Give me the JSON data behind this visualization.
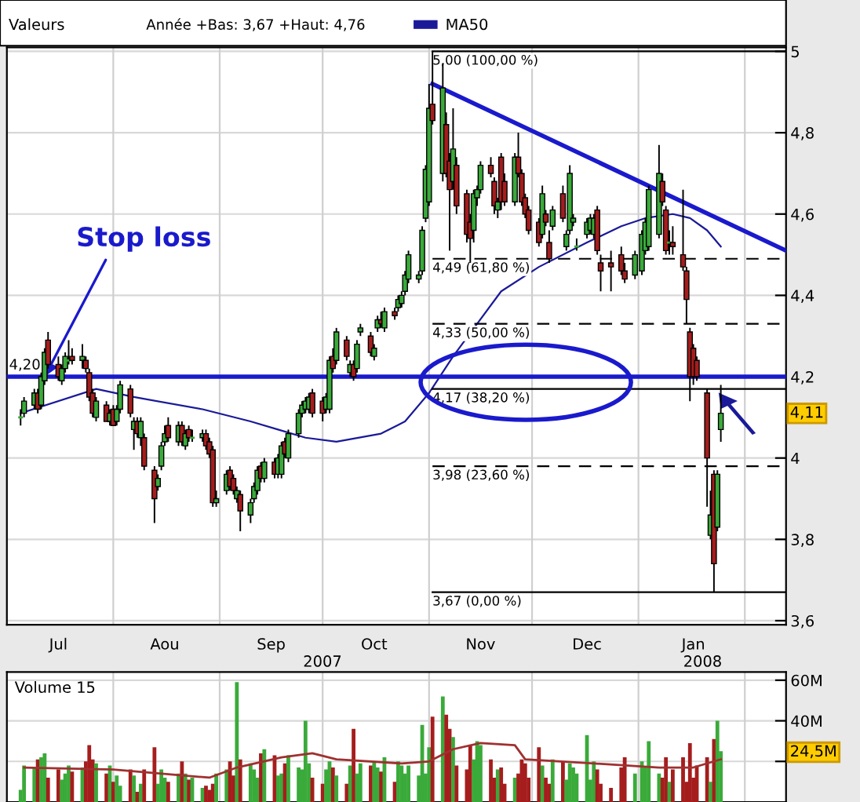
{
  "chart_data": [
    {
      "type": "candlestick",
      "title": "Valeurs",
      "subtitle": "Année +Bas: 3,67 +Haut: 4,76",
      "x": [
        "2007-07-05",
        "2007-07-06",
        "2007-07-09",
        "2007-07-10",
        "2007-07-11",
        "2007-07-12",
        "2007-07-13",
        "2007-07-16",
        "2007-07-17",
        "2007-07-18",
        "2007-07-19",
        "2007-07-20",
        "2007-07-23",
        "2007-07-24",
        "2007-07-25",
        "2007-07-26",
        "2007-07-27",
        "2007-07-30",
        "2007-07-31",
        "2007-08-01",
        "2007-08-02",
        "2007-08-03",
        "2007-08-06",
        "2007-08-07",
        "2007-08-08",
        "2007-08-09",
        "2007-08-10",
        "2007-08-13",
        "2007-08-14",
        "2007-08-15",
        "2007-08-16",
        "2007-08-17",
        "2007-08-20",
        "2007-08-21",
        "2007-08-22",
        "2007-08-23",
        "2007-08-24",
        "2007-08-27",
        "2007-08-28",
        "2007-08-29",
        "2007-08-30",
        "2007-08-31",
        "2007-09-03",
        "2007-09-04",
        "2007-09-05",
        "2007-09-06",
        "2007-09-07",
        "2007-09-10",
        "2007-09-11",
        "2007-09-12",
        "2007-09-13",
        "2007-09-14",
        "2007-09-17",
        "2007-09-18",
        "2007-09-19",
        "2007-09-20",
        "2007-09-21",
        "2007-09-24",
        "2007-09-25",
        "2007-09-26",
        "2007-09-27",
        "2007-09-28",
        "2007-10-01",
        "2007-10-02",
        "2007-10-03",
        "2007-10-04",
        "2007-10-05",
        "2007-10-08",
        "2007-10-09",
        "2007-10-10",
        "2007-10-11",
        "2007-10-12",
        "2007-10-15",
        "2007-10-16",
        "2007-10-17",
        "2007-10-18",
        "2007-10-19",
        "2007-10-22",
        "2007-10-23",
        "2007-10-24",
        "2007-10-25",
        "2007-10-26",
        "2007-10-29",
        "2007-10-30",
        "2007-10-31",
        "2007-11-01",
        "2007-11-02",
        "2007-11-05",
        "2007-11-06",
        "2007-11-07",
        "2007-11-08",
        "2007-11-09",
        "2007-11-12",
        "2007-11-13",
        "2007-11-14",
        "2007-11-15",
        "2007-11-16",
        "2007-11-19",
        "2007-11-20",
        "2007-11-21",
        "2007-11-22",
        "2007-11-23",
        "2007-11-26",
        "2007-11-27",
        "2007-11-28",
        "2007-11-29",
        "2007-11-30",
        "2007-12-03",
        "2007-12-04",
        "2007-12-05",
        "2007-12-06",
        "2007-12-07",
        "2007-12-10",
        "2007-12-11",
        "2007-12-12",
        "2007-12-13",
        "2007-12-14",
        "2007-12-17",
        "2007-12-18",
        "2007-12-19",
        "2007-12-20",
        "2007-12-21",
        "2007-12-24",
        "2007-12-27",
        "2007-12-28",
        "2007-12-31",
        "2008-01-02",
        "2008-01-03",
        "2008-01-04",
        "2008-01-07",
        "2008-01-08",
        "2008-01-09",
        "2008-01-10",
        "2008-01-11",
        "2008-01-14",
        "2008-01-15",
        "2008-01-16",
        "2008-01-17",
        "2008-01-18",
        "2008-01-21",
        "2008-01-22",
        "2008-01-23",
        "2008-01-24",
        "2008-01-25"
      ],
      "ohlc": [
        [
          4.1,
          4.12,
          4.08,
          4.1
        ],
        [
          4.11,
          4.15,
          4.1,
          4.14
        ],
        [
          4.13,
          4.17,
          4.12,
          4.16
        ],
        [
          4.16,
          4.17,
          4.11,
          4.12
        ],
        [
          4.13,
          4.21,
          4.12,
          4.2
        ],
        [
          4.19,
          4.27,
          4.18,
          4.26
        ],
        [
          4.29,
          4.31,
          4.22,
          4.23
        ],
        [
          4.23,
          4.25,
          4.19,
          4.2
        ],
        [
          4.19,
          4.23,
          4.18,
          4.22
        ],
        [
          4.22,
          4.26,
          4.21,
          4.25
        ],
        [
          4.24,
          4.29,
          4.23,
          4.24
        ],
        [
          4.25,
          4.27,
          4.23,
          4.24
        ],
        [
          4.24,
          4.28,
          4.22,
          4.25
        ],
        [
          4.24,
          4.25,
          4.21,
          4.22
        ],
        [
          4.21,
          4.22,
          4.14,
          4.15
        ],
        [
          4.16,
          4.17,
          4.1,
          4.11
        ],
        [
          4.1,
          4.15,
          4.09,
          4.14
        ],
        [
          4.13,
          4.14,
          4.09,
          4.09
        ],
        [
          4.09,
          4.12,
          4.08,
          4.11
        ],
        [
          4.12,
          4.13,
          4.08,
          4.08
        ],
        [
          4.09,
          4.13,
          4.08,
          4.12
        ],
        [
          4.12,
          4.19,
          4.11,
          4.18
        ],
        [
          4.17,
          4.18,
          4.1,
          4.11
        ],
        [
          4.07,
          4.1,
          4.02,
          4.09
        ],
        [
          4.09,
          4.1,
          4.05,
          4.06
        ],
        [
          4.05,
          4.1,
          4.03,
          4.09
        ],
        [
          4.05,
          4.06,
          3.97,
          3.98
        ],
        [
          3.97,
          3.98,
          3.84,
          3.9
        ],
        [
          3.93,
          3.96,
          3.92,
          3.95
        ],
        [
          3.98,
          4.04,
          3.97,
          4.03
        ],
        [
          4.04,
          4.08,
          4.03,
          4.06
        ],
        [
          4.08,
          4.1,
          4.04,
          4.05
        ],
        [
          4.04,
          4.09,
          4.03,
          4.08
        ],
        [
          4.08,
          4.09,
          4.03,
          4.04
        ],
        [
          4.03,
          4.07,
          4.02,
          4.06
        ],
        [
          4.07,
          4.08,
          4.04,
          4.05
        ],
        [
          4.05,
          4.07,
          4.04,
          4.05
        ],
        [
          4.05,
          4.07,
          4.04,
          4.06
        ],
        [
          4.06,
          4.07,
          4.02,
          4.03
        ],
        [
          4.04,
          4.05,
          4.0,
          4.01
        ],
        [
          4.02,
          4.03,
          3.88,
          3.89
        ],
        [
          3.89,
          3.92,
          3.88,
          3.9
        ],
        [
          3.92,
          3.97,
          3.91,
          3.96
        ],
        [
          3.97,
          3.98,
          3.92,
          3.93
        ],
        [
          3.95,
          3.96,
          3.91,
          3.92
        ],
        [
          3.9,
          3.93,
          3.89,
          3.92
        ],
        [
          3.91,
          3.92,
          3.82,
          3.87
        ],
        [
          3.86,
          3.9,
          3.84,
          3.89
        ],
        [
          3.9,
          3.94,
          3.89,
          3.93
        ],
        [
          3.92,
          3.98,
          3.91,
          3.97
        ],
        [
          3.98,
          3.99,
          3.94,
          3.95
        ],
        [
          3.95,
          4.0,
          3.94,
          3.99
        ],
        [
          3.99,
          4.0,
          3.95,
          3.96
        ],
        [
          3.96,
          4.01,
          3.95,
          4.0
        ],
        [
          3.96,
          4.04,
          3.95,
          4.03
        ],
        [
          4.04,
          4.05,
          4.0,
          4.01
        ],
        [
          4.0,
          4.07,
          3.99,
          4.06
        ],
        [
          4.06,
          4.12,
          4.05,
          4.11
        ],
        [
          4.11,
          4.14,
          4.1,
          4.13
        ],
        [
          4.12,
          4.15,
          4.11,
          4.14
        ],
        [
          4.12,
          4.16,
          4.11,
          4.15
        ],
        [
          4.16,
          4.17,
          4.1,
          4.11
        ],
        [
          4.14,
          4.15,
          4.09,
          4.11
        ],
        [
          4.12,
          4.16,
          4.11,
          4.15
        ],
        [
          4.12,
          4.25,
          4.11,
          4.24
        ],
        [
          4.25,
          4.27,
          4.21,
          4.22
        ],
        [
          4.24,
          4.32,
          4.23,
          4.31
        ],
        [
          4.29,
          4.3,
          4.24,
          4.25
        ],
        [
          4.21,
          4.24,
          4.2,
          4.23
        ],
        [
          4.23,
          4.24,
          4.19,
          4.2
        ],
        [
          4.22,
          4.29,
          4.21,
          4.28
        ],
        [
          4.31,
          4.33,
          4.3,
          4.32
        ],
        [
          4.3,
          4.31,
          4.25,
          4.26
        ],
        [
          4.25,
          4.28,
          4.24,
          4.27
        ],
        [
          4.32,
          4.35,
          4.31,
          4.34
        ],
        [
          4.34,
          4.36,
          4.32,
          4.33
        ],
        [
          4.32,
          4.37,
          4.31,
          4.36
        ],
        [
          4.36,
          4.37,
          4.34,
          4.35
        ],
        [
          4.37,
          4.4,
          4.36,
          4.39
        ],
        [
          4.38,
          4.41,
          4.37,
          4.4
        ],
        [
          4.41,
          4.46,
          4.4,
          4.45
        ],
        [
          4.44,
          4.51,
          4.43,
          4.5
        ],
        [
          4.44,
          4.46,
          4.43,
          4.45
        ],
        [
          4.46,
          4.57,
          4.45,
          4.56
        ],
        [
          4.59,
          4.72,
          4.58,
          4.71
        ],
        [
          4.63,
          4.92,
          4.62,
          4.86
        ],
        [
          4.87,
          5.0,
          4.82,
          4.83
        ],
        [
          4.7,
          4.97,
          4.68,
          4.91
        ],
        [
          4.82,
          4.85,
          4.69,
          4.7
        ],
        [
          4.73,
          4.75,
          4.51,
          4.66
        ],
        [
          4.68,
          4.86,
          4.66,
          4.76
        ],
        [
          4.72,
          4.74,
          4.6,
          4.62
        ],
        [
          4.65,
          4.66,
          4.53,
          4.55
        ],
        [
          4.58,
          4.6,
          4.48,
          4.54
        ],
        [
          4.56,
          4.66,
          4.53,
          4.65
        ],
        [
          4.64,
          4.67,
          4.62,
          4.66
        ],
        [
          4.66,
          4.73,
          4.65,
          4.72
        ],
        [
          4.72,
          4.74,
          4.69,
          4.7
        ],
        [
          4.68,
          4.69,
          4.6,
          4.62
        ],
        [
          4.61,
          4.64,
          4.59,
          4.63
        ],
        [
          4.74,
          4.75,
          4.61,
          4.63
        ],
        [
          4.68,
          4.7,
          4.62,
          4.63
        ],
        [
          4.63,
          4.75,
          4.62,
          4.74
        ],
        [
          4.74,
          4.8,
          4.69,
          4.7
        ],
        [
          4.7,
          4.71,
          4.62,
          4.63
        ],
        [
          4.64,
          4.65,
          4.59,
          4.6
        ],
        [
          4.61,
          4.62,
          4.55,
          4.56
        ],
        [
          4.58,
          4.59,
          4.52,
          4.53
        ],
        [
          4.55,
          4.67,
          4.54,
          4.65
        ],
        [
          4.6,
          4.61,
          4.57,
          4.58
        ],
        [
          4.53,
          4.56,
          4.48,
          4.49
        ],
        [
          4.57,
          4.62,
          4.56,
          4.61
        ],
        [
          4.65,
          4.67,
          4.58,
          4.59
        ],
        [
          4.52,
          4.56,
          4.51,
          4.55
        ],
        [
          4.56,
          4.72,
          4.55,
          4.7
        ],
        [
          4.58,
          4.6,
          4.57,
          4.59
        ],
        [
          4.52,
          4.54,
          4.51,
          4.52
        ],
        [
          4.55,
          4.59,
          4.54,
          4.58
        ],
        [
          4.56,
          4.6,
          4.55,
          4.59
        ],
        [
          4.55,
          4.6,
          4.54,
          4.59
        ],
        [
          4.61,
          4.62,
          4.5,
          4.51
        ],
        [
          4.48,
          4.5,
          4.41,
          4.46
        ],
        [
          4.48,
          4.51,
          4.41,
          4.47
        ],
        [
          4.5,
          4.52,
          4.45,
          4.46
        ],
        [
          4.46,
          4.48,
          4.43,
          4.44
        ],
        [
          4.45,
          4.51,
          4.44,
          4.5
        ],
        [
          4.46,
          4.56,
          4.45,
          4.55
        ],
        [
          4.51,
          4.59,
          4.5,
          4.58
        ],
        [
          4.52,
          4.67,
          4.51,
          4.66
        ],
        [
          4.55,
          4.77,
          4.54,
          4.7
        ],
        [
          4.68,
          4.7,
          4.62,
          4.63
        ],
        [
          4.61,
          4.62,
          4.5,
          4.51
        ],
        [
          4.53,
          4.56,
          4.5,
          4.53
        ],
        [
          4.53,
          4.57,
          4.5,
          4.52
        ],
        [
          4.5,
          4.66,
          4.46,
          4.47
        ],
        [
          4.46,
          4.47,
          4.33,
          4.39
        ],
        [
          4.31,
          4.32,
          4.14,
          4.2
        ],
        [
          4.27,
          4.28,
          4.18,
          4.2
        ],
        [
          4.24,
          4.25,
          4.19,
          4.2
        ],
        [
          4.16,
          4.17,
          3.88,
          4.0
        ],
        [
          3.81,
          3.92,
          3.8,
          3.86
        ],
        [
          3.96,
          3.97,
          3.67,
          3.74
        ],
        [
          3.83,
          3.97,
          3.82,
          3.96
        ],
        [
          4.07,
          4.18,
          4.04,
          4.11
        ]
      ],
      "colors": [
        "#3aaa3a",
        "#3aaa3a",
        "#3aaa3a",
        "#a51d1d",
        "#3aaa3a",
        "#3aaa3a",
        "#a51d1d",
        "#a51d1d",
        "#3aaa3a",
        "#3aaa3a",
        "#3aaa3a",
        "#a51d1d",
        "#3aaa3a",
        "#a51d1d",
        "#a51d1d",
        "#a51d1d",
        "#3aaa3a",
        "#a51d1d",
        "#3aaa3a",
        "#a51d1d",
        "#3aaa3a",
        "#3aaa3a",
        "#a51d1d",
        "#3aaa3a",
        "#a51d1d",
        "#3aaa3a",
        "#a51d1d",
        "#a51d1d",
        "#3aaa3a",
        "#3aaa3a",
        "#3aaa3a",
        "#a51d1d",
        "#3aaa3a",
        "#a51d1d",
        "#3aaa3a",
        "#a51d1d",
        "#3aaa3a",
        "#3aaa3a",
        "#a51d1d",
        "#a51d1d",
        "#a51d1d",
        "#3aaa3a",
        "#3aaa3a",
        "#a51d1d",
        "#a51d1d",
        "#3aaa3a",
        "#a51d1d",
        "#3aaa3a",
        "#3aaa3a",
        "#3aaa3a",
        "#a51d1d",
        "#3aaa3a",
        "#a51d1d",
        "#3aaa3a",
        "#3aaa3a",
        "#a51d1d",
        "#3aaa3a",
        "#3aaa3a",
        "#3aaa3a",
        "#3aaa3a",
        "#3aaa3a",
        "#a51d1d",
        "#a51d1d",
        "#3aaa3a",
        "#3aaa3a",
        "#a51d1d",
        "#3aaa3a",
        "#a51d1d",
        "#3aaa3a",
        "#a51d1d",
        "#3aaa3a",
        "#3aaa3a",
        "#a51d1d",
        "#3aaa3a",
        "#3aaa3a",
        "#a51d1d",
        "#3aaa3a",
        "#a51d1d",
        "#3aaa3a",
        "#3aaa3a",
        "#3aaa3a",
        "#3aaa3a",
        "#3aaa3a",
        "#3aaa3a",
        "#3aaa3a",
        "#3aaa3a",
        "#a51d1d",
        "#3aaa3a",
        "#a51d1d",
        "#a51d1d",
        "#3aaa3a",
        "#a51d1d",
        "#a51d1d",
        "#a51d1d",
        "#3aaa3a",
        "#3aaa3a",
        "#3aaa3a",
        "#a51d1d",
        "#a51d1d",
        "#3aaa3a",
        "#a51d1d",
        "#a51d1d",
        "#3aaa3a",
        "#a51d1d",
        "#a51d1d",
        "#a51d1d",
        "#a51d1d",
        "#a51d1d",
        "#3aaa3a",
        "#a51d1d",
        "#a51d1d",
        "#3aaa3a",
        "#a51d1d",
        "#3aaa3a",
        "#3aaa3a",
        "#3aaa3a",
        "#3aaa3a",
        "#3aaa3a",
        "#3aaa3a",
        "#3aaa3a",
        "#a51d1d",
        "#a51d1d",
        "#a51d1d",
        "#a51d1d",
        "#a51d1d",
        "#3aaa3a",
        "#3aaa3a",
        "#3aaa3a",
        "#3aaa3a",
        "#3aaa3a",
        "#a51d1d",
        "#a51d1d",
        "#3aaa3a",
        "#a51d1d",
        "#a51d1d",
        "#a51d1d",
        "#a51d1d",
        "#a51d1d",
        "#a51d1d",
        "#a51d1d",
        "#3aaa3a",
        "#a51d1d",
        "#3aaa3a",
        "#3aaa3a"
      ],
      "series": [
        {
          "type": "line",
          "name": "MA50",
          "color": "#1a1a99",
          "x": [
            "2007-07-05",
            "2007-07-27",
            "2007-08-07",
            "2007-08-27",
            "2007-09-10",
            "2007-09-18",
            "2007-09-26",
            "2007-10-05",
            "2007-10-18",
            "2007-10-25",
            "2007-11-01",
            "2007-11-08",
            "2007-11-15",
            "2007-11-22",
            "2007-12-03",
            "2007-12-17",
            "2007-12-27",
            "2008-01-03",
            "2008-01-11",
            "2008-01-16",
            "2008-01-21",
            "2008-01-25"
          ],
          "values": [
            4.11,
            4.17,
            4.15,
            4.12,
            4.09,
            4.07,
            4.05,
            4.04,
            4.06,
            4.09,
            4.16,
            4.25,
            4.33,
            4.41,
            4.47,
            4.53,
            4.57,
            4.59,
            4.6,
            4.59,
            4.56,
            4.52
          ]
        },
        {
          "type": "line",
          "color": "#1a1acc",
          "x": [
            "2007-11-02",
            "2008-02-13"
          ],
          "values": [
            4.92,
            4.51
          ]
        },
        {
          "type": "line",
          "color": "#000000",
          "line_style": "solid",
          "x": [
            "2007-11-02",
            "2008-02-13"
          ],
          "values": [
            5.0,
            5.0
          ]
        },
        {
          "type": "line",
          "color": "#000000",
          "line_style": "dashed",
          "x": [
            "2007-11-02",
            "2008-02-13"
          ],
          "values": [
            4.49,
            4.49
          ]
        },
        {
          "type": "line",
          "color": "#000000",
          "line_style": "dashed",
          "x": [
            "2007-11-02",
            "2008-02-13"
          ],
          "values": [
            4.33,
            4.33
          ]
        },
        {
          "type": "line",
          "color": "#000000",
          "line_style": "solid",
          "x": [
            "2007-11-02",
            "2008-02-13"
          ],
          "values": [
            4.17,
            4.17
          ]
        },
        {
          "type": "line",
          "color": "#000000",
          "line_style": "dashed",
          "x": [
            "2007-11-02",
            "2008-02-13"
          ],
          "values": [
            3.98,
            3.98
          ]
        },
        {
          "type": "line",
          "color": "#000000",
          "line_style": "solid",
          "x": [
            "2007-11-02",
            "2008-02-13"
          ],
          "values": [
            3.67,
            3.67
          ]
        }
      ],
      "ref_lines": [
        {
          "axis": "y",
          "value": 4.2,
          "label": "4,20",
          "color": "#1a1acc"
        }
      ],
      "annotations": [
        {
          "text": "5,00 (100,00 %)",
          "x": "2007-11-02",
          "y": 5.0
        },
        {
          "text": "4,49 (61,80 %)",
          "x": "2007-11-02",
          "y": 4.49
        },
        {
          "text": "4,33 (50,00 %)",
          "x": "2007-11-02",
          "y": 4.33
        },
        {
          "text": "4,17 (38,20 %)",
          "x": "2007-11-02",
          "y": 4.17
        },
        {
          "text": "3,98 (23,60 %)",
          "x": "2007-11-02",
          "y": 3.98
        },
        {
          "text": "3,67 (0,00 %)",
          "x": "2007-11-02",
          "y": 3.67
        },
        {
          "text": "Stop loss",
          "x": "2007-07-12",
          "y": 4.2
        },
        "4,11",
        "2007",
        "2008"
      ],
      "xlim": [
        "2007-07-01",
        "2008-02-13"
      ],
      "ylim": [
        3.59,
        5.01
      ],
      "xticks": [
        {
          "value": "2007-07-16",
          "label": "Jul"
        },
        {
          "value": "2007-08-01",
          "label": null
        },
        {
          "value": "2007-08-16",
          "label": "Aou"
        },
        {
          "value": "2007-09-01",
          "label": null
        },
        {
          "value": "2007-09-16",
          "label": "Sep"
        },
        {
          "value": "2007-10-01",
          "label": null
        },
        {
          "value": "2007-10-16",
          "label": "Oct"
        },
        {
          "value": "2007-11-01",
          "label": null
        },
        {
          "value": "2007-11-16",
          "label": "Nov"
        },
        {
          "value": "2007-12-01",
          "label": null
        },
        {
          "value": "2007-12-17",
          "label": "Dec"
        },
        {
          "value": "2008-01-01",
          "label": null
        },
        {
          "value": "2008-01-17",
          "label": "Jan"
        },
        {
          "value": "2008-02-01",
          "label": null
        }
      ],
      "yticks": [
        {
          "value": 5,
          "label": "5"
        },
        {
          "value": 4.8,
          "label": "4,8"
        },
        {
          "value": 4.6,
          "label": "4,6"
        },
        {
          "value": 4.4,
          "label": "4,4"
        },
        {
          "value": 4.2,
          "label": "4,2"
        },
        {
          "value": 4,
          "label": "4"
        },
        {
          "value": 3.8,
          "label": "3,8"
        },
        {
          "value": 3.6,
          "label": "3,6"
        }
      ],
      "grid": true,
      "legend": "top"
    },
    {
      "type": "bar",
      "title": "Volume 15",
      "tick_labels": "y",
      "x": [
        "2007-07-05",
        "2007-07-06",
        "2007-07-09",
        "2007-07-10",
        "2007-07-11",
        "2007-07-12",
        "2007-07-13",
        "2007-07-16",
        "2007-07-17",
        "2007-07-18",
        "2007-07-19",
        "2007-07-20",
        "2007-07-23",
        "2007-07-24",
        "2007-07-25",
        "2007-07-26",
        "2007-07-27",
        "2007-07-30",
        "2007-07-31",
        "2007-08-01",
        "2007-08-02",
        "2007-08-03",
        "2007-08-06",
        "2007-08-07",
        "2007-08-08",
        "2007-08-09",
        "2007-08-10",
        "2007-08-13",
        "2007-08-14",
        "2007-08-15",
        "2007-08-16",
        "2007-08-17",
        "2007-08-20",
        "2007-08-21",
        "2007-08-22",
        "2007-08-23",
        "2007-08-24",
        "2007-08-27",
        "2007-08-28",
        "2007-08-29",
        "2007-08-30",
        "2007-08-31",
        "2007-09-03",
        "2007-09-04",
        "2007-09-05",
        "2007-09-06",
        "2007-09-07",
        "2007-09-10",
        "2007-09-11",
        "2007-09-12",
        "2007-09-13",
        "2007-09-14",
        "2007-09-17",
        "2007-09-18",
        "2007-09-19",
        "2007-09-20",
        "2007-09-21",
        "2007-09-24",
        "2007-09-25",
        "2007-09-26",
        "2007-09-27",
        "2007-09-28",
        "2007-10-01",
        "2007-10-02",
        "2007-10-03",
        "2007-10-04",
        "2007-10-05",
        "2007-10-08",
        "2007-10-09",
        "2007-10-10",
        "2007-10-11",
        "2007-10-12",
        "2007-10-15",
        "2007-10-16",
        "2007-10-17",
        "2007-10-18",
        "2007-10-19",
        "2007-10-22",
        "2007-10-23",
        "2007-10-24",
        "2007-10-25",
        "2007-10-26",
        "2007-10-29",
        "2007-10-30",
        "2007-10-31",
        "2007-11-01",
        "2007-11-02",
        "2007-11-05",
        "2007-11-06",
        "2007-11-07",
        "2007-11-08",
        "2007-11-09",
        "2007-11-12",
        "2007-11-13",
        "2007-11-14",
        "2007-11-15",
        "2007-11-16",
        "2007-11-19",
        "2007-11-20",
        "2007-11-21",
        "2007-11-22",
        "2007-11-23",
        "2007-11-26",
        "2007-11-27",
        "2007-11-28",
        "2007-11-29",
        "2007-11-30",
        "2007-12-03",
        "2007-12-04",
        "2007-12-05",
        "2007-12-06",
        "2007-12-07",
        "2007-12-10",
        "2007-12-11",
        "2007-12-12",
        "2007-12-13",
        "2007-12-14",
        "2007-12-17",
        "2007-12-18",
        "2007-12-19",
        "2007-12-20",
        "2007-12-21",
        "2007-12-24",
        "2007-12-27",
        "2007-12-28",
        "2007-12-31",
        "2008-01-02",
        "2008-01-03",
        "2008-01-04",
        "2008-01-07",
        "2008-01-08",
        "2008-01-09",
        "2008-01-10",
        "2008-01-11",
        "2008-01-14",
        "2008-01-15",
        "2008-01-16",
        "2008-01-17",
        "2008-01-18",
        "2008-01-21",
        "2008-01-22",
        "2008-01-23",
        "2008-01-24",
        "2008-01-25"
      ],
      "series": [
        {
          "type": "bar",
          "values": [
            6,
            18,
            17,
            21,
            22,
            24,
            12,
            16,
            11,
            14,
            18,
            15,
            17,
            20,
            28,
            21,
            19,
            14,
            18,
            10,
            13,
            8,
            16,
            13,
            5,
            9,
            16,
            27,
            9,
            16,
            12,
            10,
            14,
            20,
            14,
            11,
            12,
            7,
            8,
            6,
            9,
            14,
            16,
            20,
            13,
            59,
            21,
            19,
            16,
            12,
            24,
            26,
            23,
            13,
            14,
            19,
            23,
            17,
            16,
            40,
            19,
            12,
            9,
            16,
            20,
            17,
            13,
            9,
            18,
            36,
            14,
            19,
            18,
            20,
            17,
            15,
            22,
            10,
            20,
            18,
            14,
            18,
            13,
            38,
            14,
            27,
            42,
            52,
            43,
            36,
            32,
            18,
            16,
            28,
            21,
            30,
            28,
            21,
            12,
            16,
            17,
            9,
            12,
            14,
            21,
            19,
            12,
            27,
            18,
            12,
            9,
            21,
            20,
            11,
            19,
            17,
            14,
            33,
            11,
            20,
            16,
            9,
            7,
            17,
            22,
            14,
            20,
            17,
            30,
            14,
            12,
            22,
            10,
            16,
            22,
            10,
            29,
            12,
            18,
            22,
            10,
            31,
            40,
            25
          ],
          "colors": [
            "#3aaa3a",
            "#3aaa3a",
            "#3aaa3a",
            "#a51d1d",
            "#3aaa3a",
            "#3aaa3a",
            "#a51d1d",
            "#a51d1d",
            "#3aaa3a",
            "#3aaa3a",
            "#3aaa3a",
            "#a51d1d",
            "#3aaa3a",
            "#a51d1d",
            "#a51d1d",
            "#a51d1d",
            "#3aaa3a",
            "#a51d1d",
            "#3aaa3a",
            "#a51d1d",
            "#3aaa3a",
            "#3aaa3a",
            "#a51d1d",
            "#3aaa3a",
            "#a51d1d",
            "#3aaa3a",
            "#a51d1d",
            "#a51d1d",
            "#3aaa3a",
            "#3aaa3a",
            "#3aaa3a",
            "#a51d1d",
            "#3aaa3a",
            "#a51d1d",
            "#3aaa3a",
            "#a51d1d",
            "#3aaa3a",
            "#3aaa3a",
            "#a51d1d",
            "#a51d1d",
            "#a51d1d",
            "#3aaa3a",
            "#3aaa3a",
            "#a51d1d",
            "#a51d1d",
            "#3aaa3a",
            "#a51d1d",
            "#3aaa3a",
            "#3aaa3a",
            "#3aaa3a",
            "#a51d1d",
            "#3aaa3a",
            "#a51d1d",
            "#3aaa3a",
            "#3aaa3a",
            "#a51d1d",
            "#3aaa3a",
            "#3aaa3a",
            "#3aaa3a",
            "#3aaa3a",
            "#3aaa3a",
            "#a51d1d",
            "#a51d1d",
            "#3aaa3a",
            "#3aaa3a",
            "#a51d1d",
            "#3aaa3a",
            "#a51d1d",
            "#3aaa3a",
            "#a51d1d",
            "#3aaa3a",
            "#3aaa3a",
            "#a51d1d",
            "#3aaa3a",
            "#3aaa3a",
            "#a51d1d",
            "#3aaa3a",
            "#a51d1d",
            "#3aaa3a",
            "#3aaa3a",
            "#3aaa3a",
            "#3aaa3a",
            "#3aaa3a",
            "#3aaa3a",
            "#3aaa3a",
            "#3aaa3a",
            "#a51d1d",
            "#3aaa3a",
            "#a51d1d",
            "#a51d1d",
            "#3aaa3a",
            "#a51d1d",
            "#a51d1d",
            "#a51d1d",
            "#3aaa3a",
            "#3aaa3a",
            "#3aaa3a",
            "#a51d1d",
            "#a51d1d",
            "#3aaa3a",
            "#a51d1d",
            "#a51d1d",
            "#3aaa3a",
            "#a51d1d",
            "#a51d1d",
            "#a51d1d",
            "#a51d1d",
            "#a51d1d",
            "#3aaa3a",
            "#a51d1d",
            "#a51d1d",
            "#3aaa3a",
            "#a51d1d",
            "#3aaa3a",
            "#3aaa3a",
            "#3aaa3a",
            "#3aaa3a",
            "#3aaa3a",
            "#3aaa3a",
            "#3aaa3a",
            "#a51d1d",
            "#a51d1d",
            "#a51d1d",
            "#a51d1d",
            "#a51d1d",
            "#3aaa3a",
            "#3aaa3a",
            "#3aaa3a",
            "#3aaa3a",
            "#3aaa3a",
            "#a51d1d",
            "#a51d1d",
            "#3aaa3a",
            "#a51d1d",
            "#a51d1d",
            "#a51d1d",
            "#a51d1d",
            "#a51d1d",
            "#a51d1d",
            "#a51d1d",
            "#3aaa3a",
            "#a51d1d",
            "#3aaa3a",
            "#3aaa3a"
          ]
        },
        {
          "type": "line",
          "color": "#a03030",
          "x": [
            "2007-07-06",
            "2007-08-01",
            "2007-08-29",
            "2007-09-06",
            "2007-09-19",
            "2007-09-28",
            "2007-10-05",
            "2007-10-24",
            "2007-11-01",
            "2007-11-08",
            "2007-11-16",
            "2007-11-26",
            "2007-11-29",
            "2007-12-19",
            "2008-01-07",
            "2008-01-17",
            "2008-01-25"
          ],
          "values": [
            17,
            16,
            12,
            17,
            22,
            24,
            21,
            19,
            20,
            26,
            29,
            28,
            21,
            19,
            17,
            17,
            21
          ]
        }
      ],
      "annotations": [
        "24,5M"
      ],
      "xlim": [
        "2007-07-01",
        "2008-02-13"
      ],
      "ylim": [
        0,
        64
      ],
      "xticks": [
        {
          "value": "2007-08-01",
          "label": null
        },
        {
          "value": "2007-09-01",
          "label": null
        },
        {
          "value": "2007-10-01",
          "label": null
        },
        {
          "value": "2007-11-01",
          "label": null
        },
        {
          "value": "2007-12-01",
          "label": null
        },
        {
          "value": "2008-01-01",
          "label": null
        },
        {
          "value": "2008-02-01",
          "label": null
        }
      ],
      "yticks": [
        {
          "value": 60,
          "label": "60M"
        },
        {
          "value": 40,
          "label": "40M"
        },
        {
          "value": 20,
          "label": null
        }
      ],
      "grid": true
    }
  ]
}
